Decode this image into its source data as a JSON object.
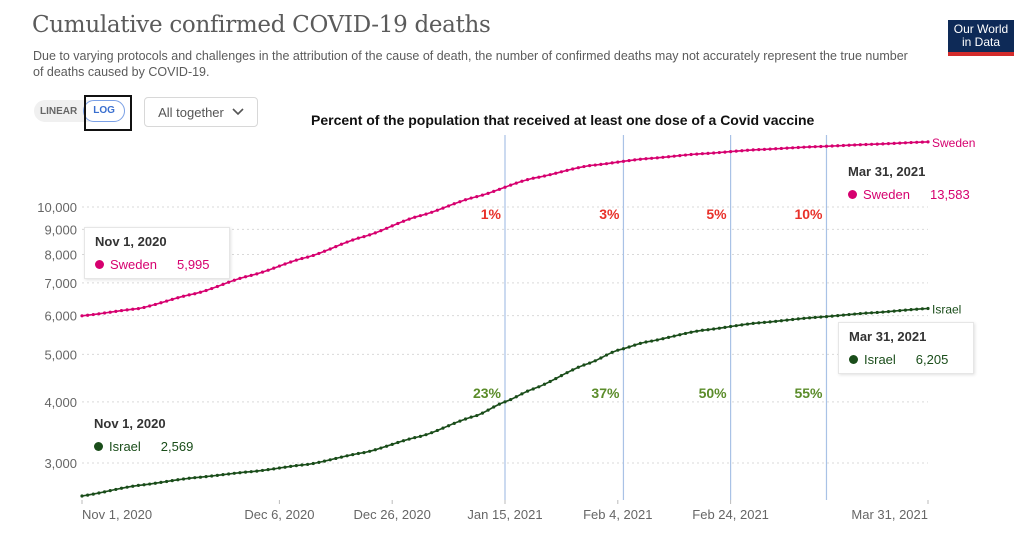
{
  "header": {
    "title": "Cumulative confirmed COVID-19 deaths",
    "subtitle": "Due to varying protocols and challenges in the attribution of the cause of death, the number of confirmed deaths may not accurately represent the true number of deaths caused by COVID-19.",
    "logo_line1": "Our World",
    "logo_line2": "in Data"
  },
  "controls": {
    "scale_options": [
      "LINEAR",
      "LOG"
    ],
    "scale_selected": "LOG",
    "dropdown_value": "All together",
    "dropdown_icon": "chevron-down-icon"
  },
  "annotation": {
    "title": "Percent of the population that received at least one dose of a Covid vaccine"
  },
  "tooltips": {
    "sweden_start": {
      "date": "Nov 1, 2020",
      "country": "Sweden",
      "value": "5,995"
    },
    "israel_start": {
      "date": "Nov 1, 2020",
      "country": "Israel",
      "value": "2,569"
    },
    "sweden_end": {
      "date": "Mar 31, 2021",
      "country": "Sweden",
      "value": "13,583"
    },
    "israel_end": {
      "date": "Mar 31, 2021",
      "country": "Israel",
      "value": "6,205"
    }
  },
  "colors": {
    "sweden": "#d6006f",
    "israel": "#1a4d1a",
    "vacc_sweden": "#e8312a",
    "vacc_israel": "#5b8c2a",
    "vline": "#a9c2e6",
    "grid": "#d9d9d9"
  },
  "chart_data": {
    "type": "line",
    "title": "Cumulative confirmed COVID-19 deaths",
    "yscale": "log",
    "ylim": [
      2600,
      14000
    ],
    "y_ticks": [
      3000,
      4000,
      5000,
      6000,
      7000,
      8000,
      9000,
      10000
    ],
    "y_tick_labels": [
      "3,000",
      "4,000",
      "5,000",
      "6,000",
      "7,000",
      "8,000",
      "9,000",
      "10,000"
    ],
    "x_range_days": [
      0,
      150
    ],
    "x_ticks": [
      {
        "day": 0,
        "label": "Nov 1, 2020"
      },
      {
        "day": 35,
        "label": "Dec 6, 2020"
      },
      {
        "day": 55,
        "label": "Dec 26, 2020"
      },
      {
        "day": 75,
        "label": "Jan 15, 2021"
      },
      {
        "day": 95,
        "label": "Feb 4, 2021"
      },
      {
        "day": 115,
        "label": "Feb 24, 2021"
      },
      {
        "day": 150,
        "label": "Mar 31, 2021"
      }
    ],
    "grid": true,
    "series": [
      {
        "name": "Sweden",
        "x_days": [
          0,
          10,
          20,
          30,
          40,
          50,
          60,
          70,
          80,
          90,
          100,
          110,
          120,
          130,
          140,
          150
        ],
        "values": [
          5995,
          6200,
          6650,
          7250,
          7900,
          8700,
          9600,
          10500,
          11450,
          12150,
          12550,
          12850,
          13100,
          13280,
          13430,
          13583
        ]
      },
      {
        "name": "Israel",
        "x_days": [
          0,
          10,
          20,
          30,
          40,
          50,
          60,
          70,
          75,
          80,
          90,
          95,
          100,
          110,
          120,
          130,
          140,
          150
        ],
        "values": [
          2569,
          2700,
          2800,
          2880,
          2980,
          3150,
          3400,
          3750,
          4000,
          4250,
          4800,
          5100,
          5300,
          5600,
          5800,
          5950,
          6080,
          6205
        ]
      }
    ],
    "vaccination_markers": [
      {
        "day": 75,
        "sweden": "1%",
        "israel": "23%"
      },
      {
        "day": 96,
        "sweden": "3%",
        "israel": "37%"
      },
      {
        "day": 115,
        "sweden": "5%",
        "israel": "50%"
      },
      {
        "day": 132,
        "sweden": "10%",
        "israel": "55%"
      }
    ],
    "end_labels": [
      "Sweden",
      "Israel"
    ]
  }
}
